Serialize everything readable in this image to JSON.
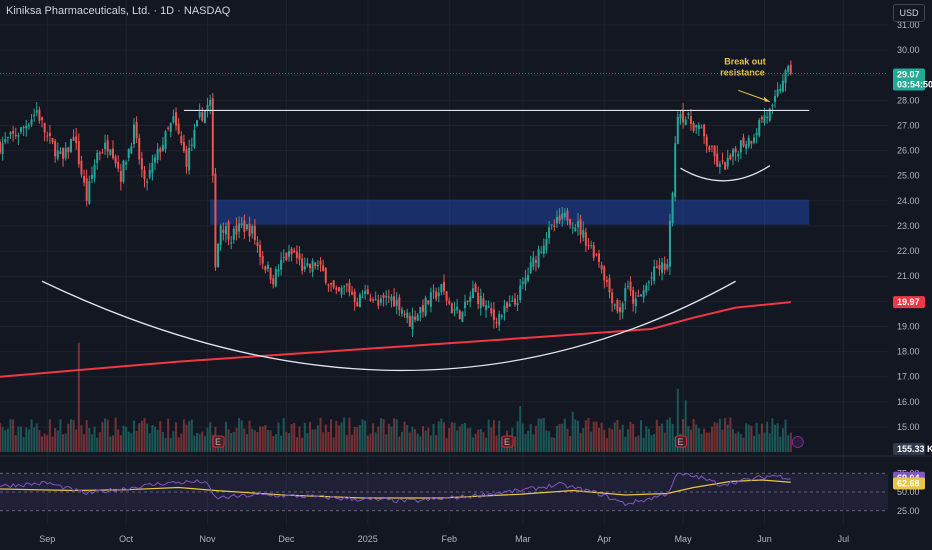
{
  "header": {
    "title": "Kiniksa Pharmaceuticals, Ltd. · 1D · NASDAQ",
    "currency": "USD"
  },
  "chart_data": {
    "type": "candlestick",
    "price_axis": {
      "ticks": [
        31,
        30,
        29,
        28,
        27,
        26,
        25,
        24,
        23,
        22,
        21,
        20,
        19,
        18,
        17,
        16,
        15
      ],
      "tick_labels": [
        "31.00",
        "30.00",
        "29.00",
        "28.00",
        "27.00",
        "26.00",
        "25.00",
        "24.00",
        "23.00",
        "22.00",
        "21.00",
        "20.00",
        "19.00",
        "18.00",
        "17.00",
        "16.00",
        "15.00"
      ],
      "range": [
        14.6,
        31.2
      ]
    },
    "time_axis": {
      "labels": [
        "Sep",
        "Oct",
        "Nov",
        "Dec",
        "2025",
        "Feb",
        "Mar",
        "Apr",
        "May",
        "Jun",
        "Jul"
      ],
      "label_days": [
        10,
        40,
        71,
        101,
        132,
        163,
        191,
        222,
        252,
        283,
        313
      ],
      "range_days": [
        -8,
        330
      ]
    },
    "price_path": [
      [
        -8,
        26.2
      ],
      [
        0,
        26.8
      ],
      [
        6,
        27.6
      ],
      [
        10,
        26.5
      ],
      [
        16,
        25.6
      ],
      [
        20,
        26.6
      ],
      [
        25,
        24.1
      ],
      [
        29,
        25.9
      ],
      [
        34,
        26.3
      ],
      [
        38,
        25.0
      ],
      [
        43,
        26.8
      ],
      [
        47,
        24.6
      ],
      [
        53,
        26.1
      ],
      [
        58,
        27.2
      ],
      [
        63,
        25.6
      ],
      [
        68,
        27.3
      ],
      [
        72,
        27.9
      ],
      [
        74,
        21.6
      ],
      [
        76,
        23.1
      ],
      [
        80,
        22.6
      ],
      [
        84,
        23.0
      ],
      [
        88,
        22.8
      ],
      [
        92,
        21.6
      ],
      [
        96,
        20.9
      ],
      [
        100,
        21.7
      ],
      [
        104,
        21.9
      ],
      [
        108,
        21.2
      ],
      [
        112,
        21.5
      ],
      [
        116,
        21.0
      ],
      [
        120,
        20.2
      ],
      [
        124,
        20.6
      ],
      [
        128,
        20.0
      ],
      [
        132,
        20.4
      ],
      [
        136,
        19.8
      ],
      [
        140,
        20.2
      ],
      [
        144,
        19.9
      ],
      [
        148,
        19.2
      ],
      [
        152,
        19.7
      ],
      [
        156,
        20.1
      ],
      [
        160,
        20.5
      ],
      [
        164,
        19.7
      ],
      [
        168,
        19.5
      ],
      [
        172,
        20.4
      ],
      [
        176,
        19.9
      ],
      [
        180,
        19.3
      ],
      [
        184,
        19.6
      ],
      [
        188,
        19.9
      ],
      [
        192,
        20.9
      ],
      [
        196,
        21.8
      ],
      [
        200,
        22.6
      ],
      [
        204,
        23.1
      ],
      [
        208,
        23.4
      ],
      [
        212,
        23.0
      ],
      [
        216,
        22.3
      ],
      [
        220,
        21.7
      ],
      [
        224,
        20.4
      ],
      [
        228,
        19.5
      ],
      [
        230,
        20.6
      ],
      [
        234,
        19.9
      ],
      [
        238,
        20.6
      ],
      [
        242,
        21.3
      ],
      [
        246,
        21.4
      ],
      [
        250,
        27.6
      ],
      [
        254,
        27.2
      ],
      [
        258,
        26.9
      ],
      [
        262,
        26.1
      ],
      [
        266,
        25.3
      ],
      [
        270,
        25.6
      ],
      [
        274,
        26.3
      ],
      [
        278,
        26.5
      ],
      [
        282,
        27.3
      ],
      [
        286,
        27.6
      ],
      [
        290,
        28.9
      ],
      [
        293,
        29.2
      ]
    ],
    "volume_max": 155330,
    "volume_spikes": [
      [
        22,
        0.95
      ],
      [
        250,
        0.55
      ],
      [
        253,
        0.45
      ],
      [
        247,
        0.3
      ],
      [
        190,
        0.4
      ],
      [
        210,
        0.35
      ],
      [
        270,
        0.3
      ],
      [
        288,
        0.25
      ]
    ],
    "earnings_days": [
      75,
      185,
      251
    ],
    "moving_average_200": {
      "color": "#f23645",
      "points": [
        [
          -8,
          17.0
        ],
        [
          60,
          17.6
        ],
        [
          130,
          18.1
        ],
        [
          200,
          18.6
        ],
        [
          240,
          18.9
        ],
        [
          256,
          19.35
        ],
        [
          272,
          19.75
        ],
        [
          293,
          19.97
        ]
      ]
    },
    "moving_average_label": "19.97",
    "volume_label": "155.33 K",
    "last_price": "29.07",
    "countdown": "03:54:50",
    "last_price_color": "#22ab94",
    "resistance_line": {
      "price": 27.6,
      "from_day": 62,
      "to_day": 300
    },
    "supply_zone": {
      "low": 23.05,
      "high": 24.05,
      "from_day": 72,
      "to_day": 300
    },
    "cup_arc": {
      "left": [
        8,
        20.8
      ],
      "bottom": [
        145,
        17.25
      ],
      "right": [
        272,
        20.8
      ]
    },
    "handle_arc": {
      "left": [
        251,
        25.3
      ],
      "bottom": [
        268,
        24.8
      ],
      "right": [
        285,
        25.4
      ]
    },
    "annotation": {
      "line1": "Break out",
      "line2": "resistance",
      "arrow_from": [
        273,
        28.4
      ],
      "arrow_to": [
        285,
        27.95
      ]
    },
    "rsi": {
      "ticks": [
        "75.00",
        "50.00",
        "25.00"
      ],
      "value": "69.04",
      "ma_value": "62.68",
      "rsi_color": "#7e57c2",
      "ma_color": "#e8c547",
      "path": [
        [
          -8,
          58
        ],
        [
          10,
          62
        ],
        [
          25,
          48
        ],
        [
          40,
          55
        ],
        [
          55,
          62
        ],
        [
          70,
          64
        ],
        [
          74,
          42
        ],
        [
          90,
          46
        ],
        [
          110,
          44
        ],
        [
          130,
          40
        ],
        [
          150,
          38
        ],
        [
          170,
          44
        ],
        [
          190,
          52
        ],
        [
          205,
          60
        ],
        [
          220,
          48
        ],
        [
          230,
          34
        ],
        [
          238,
          40
        ],
        [
          246,
          48
        ],
        [
          250,
          74
        ],
        [
          258,
          70
        ],
        [
          266,
          60
        ],
        [
          276,
          66
        ],
        [
          286,
          72
        ],
        [
          293,
          69
        ]
      ],
      "ma_path": [
        [
          -8,
          54
        ],
        [
          20,
          52
        ],
        [
          40,
          53
        ],
        [
          60,
          56
        ],
        [
          74,
          52
        ],
        [
          100,
          46
        ],
        [
          130,
          42
        ],
        [
          160,
          42
        ],
        [
          190,
          47
        ],
        [
          210,
          52
        ],
        [
          230,
          46
        ],
        [
          246,
          48
        ],
        [
          256,
          56
        ],
        [
          270,
          64
        ],
        [
          282,
          66
        ],
        [
          293,
          63
        ]
      ]
    },
    "colors": {
      "up": "#26a69a",
      "down": "#ef5350",
      "background": "#131722",
      "grid": "#1e222d"
    }
  }
}
